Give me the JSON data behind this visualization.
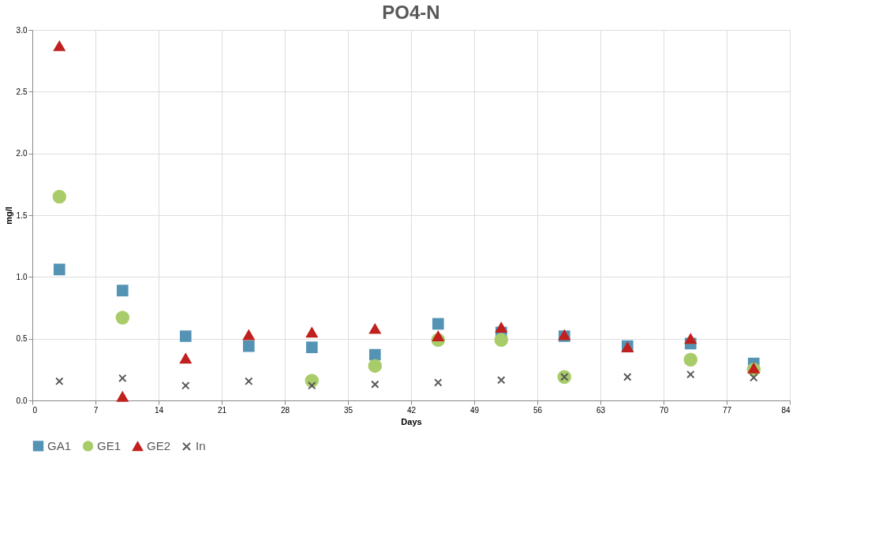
{
  "chart_data": {
    "type": "scatter",
    "title": "PO4-N",
    "xlabel": "Days",
    "ylabel": "mg/l",
    "x": [
      3,
      10,
      17,
      24,
      31,
      38,
      45,
      52,
      59,
      66,
      73,
      80
    ],
    "series": [
      {
        "name": "GA1",
        "color": "#5593b5",
        "marker": "square",
        "values": [
          1.06,
          0.89,
          0.52,
          0.44,
          0.43,
          0.37,
          0.62,
          0.55,
          0.52,
          0.44,
          0.46,
          0.3
        ]
      },
      {
        "name": "GE1",
        "color": "#a9cc6a",
        "marker": "circle",
        "values": [
          1.65,
          0.67,
          null,
          null,
          0.16,
          0.28,
          0.49,
          0.49,
          0.19,
          null,
          0.33,
          0.25
        ]
      },
      {
        "name": "GE2",
        "color": "#c0201e",
        "marker": "triangle",
        "values": [
          2.87,
          0.03,
          0.34,
          0.53,
          0.55,
          0.58,
          0.52,
          0.59,
          0.53,
          0.43,
          0.5,
          0.26
        ]
      },
      {
        "name": "In",
        "color": "#595959",
        "marker": "cross",
        "values": [
          0.155,
          0.18,
          0.12,
          0.155,
          0.12,
          0.13,
          0.145,
          0.165,
          0.19,
          0.19,
          0.21,
          0.185
        ]
      }
    ],
    "xlim": [
      0,
      84
    ],
    "xticks": [
      0,
      7,
      14,
      21,
      28,
      35,
      42,
      49,
      56,
      63,
      70,
      77,
      84
    ],
    "ylim": [
      0,
      3
    ],
    "yticks": [
      {
        "value": 0,
        "label": "0.0"
      },
      {
        "value": 0.5,
        "label": "0.5"
      },
      {
        "value": 1,
        "label": "1.0"
      },
      {
        "value": 1.5,
        "label": "1.5"
      },
      {
        "value": 2,
        "label": "2.0"
      },
      {
        "value": 2.5,
        "label": "2.5"
      },
      {
        "value": 3,
        "label": "3.0"
      }
    ],
    "grid": true,
    "legend": "bottom"
  }
}
